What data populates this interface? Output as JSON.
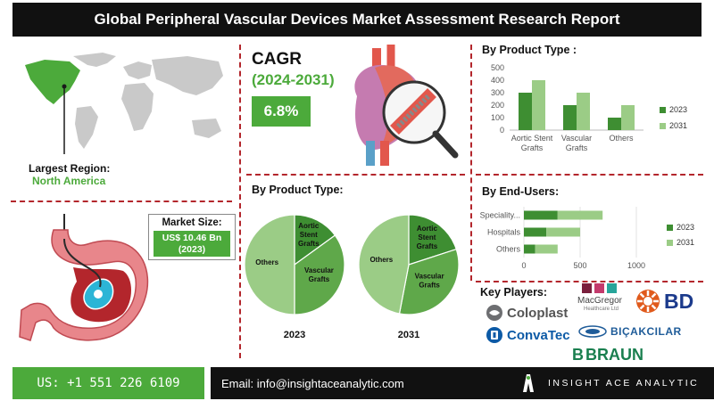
{
  "header": {
    "title": "Global Peripheral Vascular Devices Market Assessment Research Report"
  },
  "region": {
    "label": "Largest Region:",
    "value": "North America"
  },
  "market_size": {
    "label": "Market Size:",
    "value": "US$ 10.46 Bn",
    "year": "(2023)"
  },
  "cagr": {
    "label": "CAGR",
    "period": "(2024-2031)",
    "value": "6.8%"
  },
  "sections": {
    "product_pie_title": "By Product Type:",
    "product_bar_title": "By Product Type :",
    "end_users_title": "By End-Users:",
    "key_players_title": "Key Players:"
  },
  "chart_data": [
    {
      "type": "pie",
      "title": "By Product Type:",
      "label": "2023",
      "slices": [
        {
          "name": "Aortic Stent Grafts",
          "value": 15
        },
        {
          "name": "Vascular Grafts",
          "value": 35
        },
        {
          "name": "Others",
          "value": 50
        }
      ],
      "colors": [
        "#3e8e32",
        "#5fa84a",
        "#9bcc86"
      ]
    },
    {
      "type": "pie",
      "title": "By Product Type:",
      "label": "2031",
      "slices": [
        {
          "name": "Aortic Stent Grafts",
          "value": 20
        },
        {
          "name": "Vascular Grafts",
          "value": 33
        },
        {
          "name": "Others",
          "value": 47
        }
      ],
      "colors": [
        "#3e8e32",
        "#5fa84a",
        "#9bcc86"
      ]
    },
    {
      "type": "bar",
      "orientation": "vertical",
      "title": "By Product Type :",
      "categories": [
        "Aortic Stent Grafts",
        "Vascular Grafts",
        "Others"
      ],
      "series": [
        {
          "name": "2023",
          "values": [
            300,
            200,
            100
          ],
          "color": "#3e8e32"
        },
        {
          "name": "2031",
          "values": [
            400,
            300,
            200
          ],
          "color": "#9bcc86"
        }
      ],
      "ylim": [
        0,
        500
      ],
      "yticks": [
        0,
        100,
        200,
        300,
        400,
        500
      ],
      "legend": "right"
    },
    {
      "type": "bar",
      "orientation": "horizontal",
      "stacked": true,
      "title": "By End-Users:",
      "categories": [
        "Speciality...",
        "Hospitals",
        "Others"
      ],
      "series": [
        {
          "name": "2023",
          "values": [
            300,
            200,
            100
          ],
          "color": "#3e8e32"
        },
        {
          "name": "2031",
          "values": [
            400,
            300,
            200
          ],
          "color": "#9bcc86"
        }
      ],
      "xlim": [
        0,
        1000
      ],
      "xticks": [
        0,
        500,
        1000
      ],
      "legend": "right"
    }
  ],
  "key_players": {
    "coloplast": "Coloplast",
    "macgregor": "MacGregor",
    "macgregor_sub": "Healthcare Ltd",
    "bd": "BD",
    "convatec": "ConvaTec",
    "bicakcilar": "BIÇAKCILAR",
    "bbraun_b": "B",
    "bbraun": "BRAUN"
  },
  "footer": {
    "phone": "US: +1 551 226 6109",
    "email": "Email: info@insightaceanalytic.com",
    "brand": "INSIGHT ACE ANALYTIC"
  }
}
